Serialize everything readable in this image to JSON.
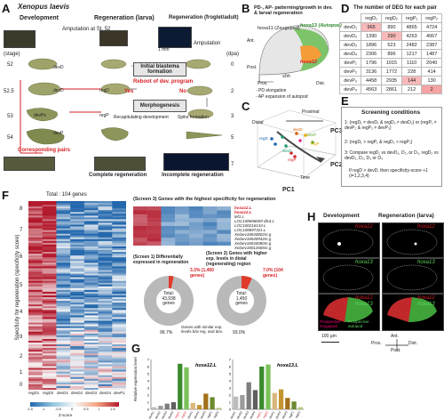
{
  "panels": {
    "a": "A",
    "b": "B",
    "c": "C",
    "d": "D",
    "e": "E",
    "f": "F",
    "g": "G",
    "h": "H"
  },
  "panelA": {
    "species": "Xenopus laevis",
    "col_development": "Development",
    "col_regen_larva": "Regeneration (larva)",
    "col_regen_froglet": "Regeneration (froglet/adult)",
    "amputation_st52": "Amputation at St. 52",
    "amputation": "Amputation",
    "stage_label": "(stage)",
    "dpa_label": "(dpa)",
    "stages": [
      "52",
      "52.5",
      "53",
      "54",
      "57"
    ],
    "dpa": [
      "0",
      "2",
      "3",
      "5",
      "7"
    ],
    "initial_blastema": "Initial blastema formation",
    "reboot": "Reboot of dev. program",
    "morphogenesis": "Morphogenesis",
    "recap": "Recapitulating development",
    "spike": "Spike formation",
    "yes": "Yes",
    "no": "No",
    "corresponding": "Corresponding pairs",
    "complete": "Complete regeneration",
    "incomplete": "Incomplete regeneration",
    "scale": "1 mm",
    "labels": [
      "devD",
      "devD",
      "devPs",
      "devP",
      "regD",
      "regP",
      "devPs",
      "devD",
      "regD",
      "regP"
    ]
  },
  "panelB": {
    "title": "PD-, AP- patterning/growth in dev. & larval regeneration",
    "hoxa11": "hoxa11 (Zeugopod)",
    "hoxa13": "hoxa13 (Autopod)",
    "hoxa12": "hoxa12",
    "shh": "shh",
    "ant": "Ant.",
    "post": "Post.",
    "prox": "Prox.",
    "dist": "Dist.",
    "note1": "- PD elongation",
    "note2": "- AP expansion of autopod"
  },
  "panelC": {
    "pc1": "PC1",
    "pc2": "PC2",
    "pc3": "PC3",
    "proximal": "Proximal",
    "distal": "Distal",
    "time": "Time",
    "pts": [
      "regD",
      "devD",
      "devD",
      "regP",
      "devP",
      "regP"
    ]
  },
  "panelD": {
    "title": "The number of DEG for each pair",
    "cols": [
      "regD₁",
      "regD₂",
      "regP₁",
      "regP₂"
    ],
    "rows": [
      {
        "name": "devD₁",
        "v": [
          "965",
          "890",
          "4865",
          "4724"
        ]
      },
      {
        "name": "devD₂",
        "v": [
          "1390",
          "290",
          "4263",
          "4067"
        ]
      },
      {
        "name": "devD₃",
        "v": [
          "1896",
          "523",
          "2482",
          "2387"
        ]
      },
      {
        "name": "devD₄",
        "v": [
          "2306",
          "896",
          "1217",
          "1487"
        ]
      },
      {
        "name": "devP₁",
        "v": [
          "1796",
          "1015",
          "1110",
          "2040"
        ]
      },
      {
        "name": "devP₂",
        "v": [
          "3136",
          "1772",
          "228",
          "414"
        ]
      },
      {
        "name": "devP₃",
        "v": [
          "4458",
          "2935",
          "144",
          "130"
        ]
      },
      {
        "name": "devP₄",
        "v": [
          "4563",
          "2861",
          "212",
          "2"
        ]
      }
    ]
  },
  "panelE": {
    "title": "Screening conditions",
    "c1": "1: (regD₁ ≠ devD₁ & regD₂ ≠ devD₂) or (regP₁ ≠ devP₂ & regP₂ ≠ devP₃)",
    "c2": "2: (regD₁ > regP₁ & regD₂ > regP₂)",
    "c3": "3: Compare regD₁ vs devD₁, D₂, or D₃, regD₂ vs devD₁, D₂, D₃ or D₄",
    "c4": "If regD > devD, then specificity-score +1 (i=1,2,3,4)"
  },
  "panelF": {
    "total": "Total : 104 genes",
    "ylab": "Specificity for regeneration (specificity score)",
    "yticks": [
      "8",
      "7",
      "6",
      "5",
      "4",
      "3",
      "2",
      "1",
      "0"
    ],
    "xcols": [
      "regD1",
      "regD2",
      "devD1",
      "devD2",
      "devD3",
      "devD4",
      "devP1"
    ],
    "zscore": "Z-score",
    "zticks": [
      "-1.5",
      "-1",
      "-0.5",
      "0",
      "0.5",
      "1",
      "1.5"
    ],
    "screen3": "(Screen 3) Genes with the highest specificity for regeneration",
    "genes": [
      "hoxa12.L",
      "hoxa12.L",
      "lef1.L",
      "LOC108696659 dlx4.L",
      "LOC100216134.L",
      "LOC108697321.L",
      "Xelaev18040802m.g",
      "Xelaev18040942m.g",
      "Xelaev18044080m.g",
      "Xelaev18012665m.g"
    ],
    "screen1": "(Screen 1) Differentially expressed in regeneration",
    "screen2": "(Screen 2) Genes with higher exp. levels in distal (regenerating) region",
    "pct1": "3.3% (1,450 genes)",
    "pct2": "7.0% (104 genes)",
    "total1": "Total: 43,938 genes",
    "total2": "Total: 1,450 genes",
    "pie1_main": "96.7%",
    "pie2_main": "93.0%",
    "simnote": "Genes with similar exp. levels b/w reg. and dev."
  },
  "panelG": {
    "ylab": "Relative expression level",
    "gene1": "hoxa12.L",
    "gene2": "hoxa13.L",
    "cats": [
      "devD1",
      "devD2",
      "devD3",
      "devD4",
      "regD1",
      "regD2",
      "devP1",
      "devP2",
      "devP3",
      "regP1",
      "regP2"
    ]
  },
  "panelH": {
    "dev": "Development",
    "regen": "Regeneration (larva)",
    "hoxa12": "hoxa12",
    "hoxa13": "hoxa13",
    "scale": "100 μm",
    "ant": "Ant.",
    "post": "Post.",
    "prox": "Prox.",
    "dist": "Dist.",
    "prosp_zeug": "Prospective zeugopod",
    "prosp_auto": "Prospective autopod"
  },
  "colors": {
    "heat_hi": "#b2182b",
    "heat_lo": "#2166ac",
    "accent_red": "#d61f26",
    "accent_green": "#2a8a2a",
    "pie_gray": "#b9b9b9",
    "pie_red": "#e03a2a"
  },
  "chart_data": [
    {
      "type": "bar",
      "title": "hoxa12.L",
      "ylabel": "Relative expression level",
      "ylim": [
        0,
        7
      ],
      "categories": [
        "devD1",
        "devD2",
        "devD3",
        "devD4",
        "regD1",
        "regD2",
        "devP1",
        "devP2",
        "devP3",
        "regP1",
        "regP2"
      ],
      "values": [
        0.3,
        0.5,
        0.8,
        1.0,
        6.4,
        5.9,
        0.9,
        0.6,
        2.2,
        1.7,
        0.2
      ]
    },
    {
      "type": "bar",
      "title": "hoxa13.L",
      "ylabel": "Relative expression level",
      "ylim": [
        0,
        7
      ],
      "categories": [
        "devD1",
        "devD2",
        "devD3",
        "devD4",
        "regD1",
        "regD2",
        "devP1",
        "devP2",
        "devP3",
        "regP1",
        "regP2"
      ],
      "values": [
        1.8,
        2.0,
        3.8,
        2.7,
        6.0,
        6.3,
        2.3,
        2.8,
        1.6,
        1.1,
        0.3
      ]
    }
  ]
}
